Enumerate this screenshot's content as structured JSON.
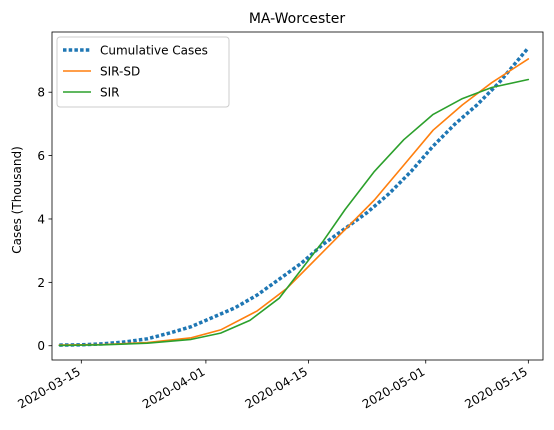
{
  "chart_data": {
    "type": "line",
    "title": "MA-Worcester",
    "xlabel": "",
    "ylabel": "Cases (Thousand)",
    "x_type": "date",
    "xlim": [
      "2020-03-11",
      "2020-05-17"
    ],
    "ylim": [
      -0.45,
      9.9
    ],
    "x_ticks": [
      "2020-03-15",
      "2020-04-01",
      "2020-04-15",
      "2020-05-01",
      "2020-05-15"
    ],
    "y_ticks": [
      0,
      2,
      4,
      6,
      8
    ],
    "grid": false,
    "legend": {
      "placement": "top-left"
    },
    "series": [
      {
        "name": "Cumulative Cases",
        "color": "#1f77b4",
        "style": "dotted",
        "points": [
          [
            "2020-03-12",
            0.02
          ],
          [
            "2020-03-15",
            0.03
          ],
          [
            "2020-03-18",
            0.06
          ],
          [
            "2020-03-21",
            0.12
          ],
          [
            "2020-03-24",
            0.22
          ],
          [
            "2020-03-27",
            0.4
          ],
          [
            "2020-03-30",
            0.6
          ],
          [
            "2020-04-02",
            0.9
          ],
          [
            "2020-04-05",
            1.2
          ],
          [
            "2020-04-08",
            1.6
          ],
          [
            "2020-04-11",
            2.1
          ],
          [
            "2020-04-14",
            2.6
          ],
          [
            "2020-04-17",
            3.2
          ],
          [
            "2020-04-20",
            3.7
          ],
          [
            "2020-04-23",
            4.2
          ],
          [
            "2020-04-26",
            4.8
          ],
          [
            "2020-04-29",
            5.5
          ],
          [
            "2020-05-02",
            6.3
          ],
          [
            "2020-05-05",
            7.0
          ],
          [
            "2020-05-08",
            7.6
          ],
          [
            "2020-05-11",
            8.3
          ],
          [
            "2020-05-15",
            9.4
          ]
        ]
      },
      {
        "name": "SIR-SD",
        "color": "#ff7f0e",
        "style": "solid",
        "points": [
          [
            "2020-03-12",
            0.02
          ],
          [
            "2020-03-18",
            0.04
          ],
          [
            "2020-03-24",
            0.1
          ],
          [
            "2020-03-30",
            0.25
          ],
          [
            "2020-04-03",
            0.5
          ],
          [
            "2020-04-08",
            1.1
          ],
          [
            "2020-04-12",
            1.8
          ],
          [
            "2020-04-15",
            2.5
          ],
          [
            "2020-04-18",
            3.2
          ],
          [
            "2020-04-21",
            3.9
          ],
          [
            "2020-04-24",
            4.6
          ],
          [
            "2020-04-28",
            5.7
          ],
          [
            "2020-05-02",
            6.8
          ],
          [
            "2020-05-06",
            7.6
          ],
          [
            "2020-05-10",
            8.3
          ],
          [
            "2020-05-15",
            9.05
          ]
        ]
      },
      {
        "name": "SIR",
        "color": "#2ca02c",
        "style": "solid",
        "points": [
          [
            "2020-03-12",
            0.01
          ],
          [
            "2020-03-18",
            0.03
          ],
          [
            "2020-03-24",
            0.08
          ],
          [
            "2020-03-30",
            0.2
          ],
          [
            "2020-04-03",
            0.4
          ],
          [
            "2020-04-07",
            0.8
          ],
          [
            "2020-04-11",
            1.5
          ],
          [
            "2020-04-14",
            2.4
          ],
          [
            "2020-04-17",
            3.3
          ],
          [
            "2020-04-20",
            4.3
          ],
          [
            "2020-04-24",
            5.5
          ],
          [
            "2020-04-28",
            6.5
          ],
          [
            "2020-05-02",
            7.3
          ],
          [
            "2020-05-06",
            7.8
          ],
          [
            "2020-05-10",
            8.15
          ],
          [
            "2020-05-15",
            8.4
          ]
        ]
      }
    ]
  }
}
